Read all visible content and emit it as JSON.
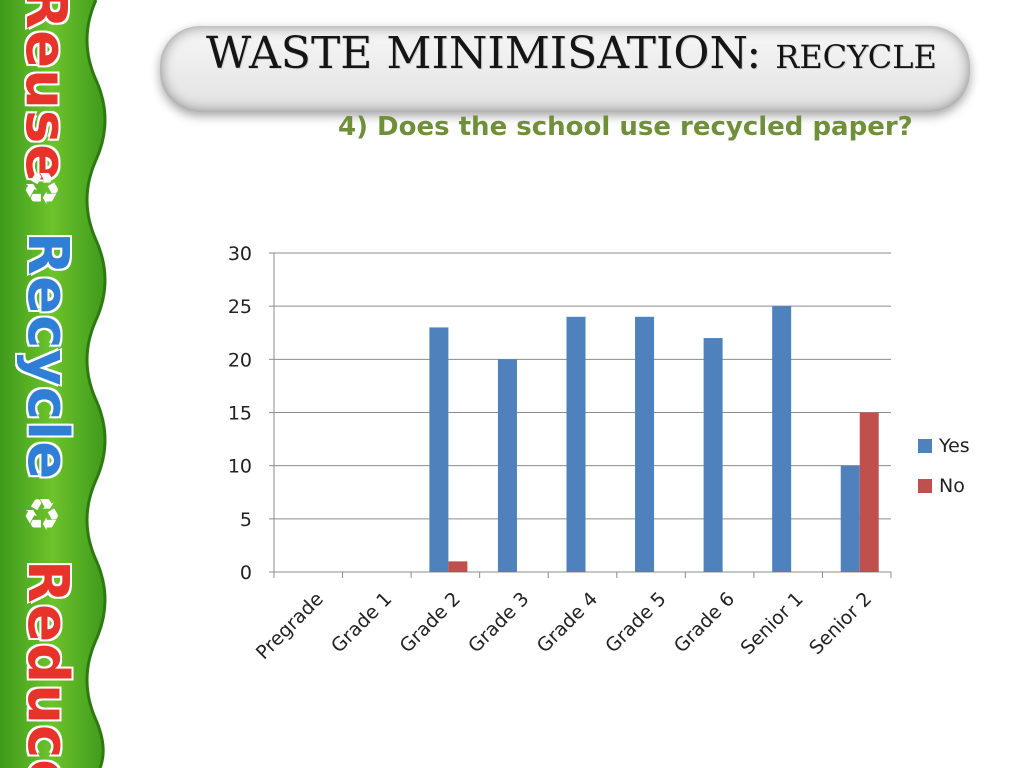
{
  "slide": {
    "title_main": "WASTE MINIMISATION: ",
    "title_small": "RECYCLE",
    "subtitle": "4) Does the school use recycled paper?"
  },
  "banner": {
    "words": [
      "Reuse",
      "Recycle",
      "Reduce"
    ]
  },
  "chart_data": {
    "type": "bar",
    "categories": [
      "Pregrade",
      "Grade 1",
      "Grade 2",
      "Grade 3",
      "Grade 4",
      "Grade 5",
      "Grade 6",
      "Senior 1",
      "Senior 2"
    ],
    "series": [
      {
        "name": "Yes",
        "color": "#4f81bd",
        "values": [
          0,
          0,
          23,
          20,
          24,
          24,
          22,
          25,
          10
        ]
      },
      {
        "name": "No",
        "color": "#c0504d",
        "values": [
          0,
          0,
          1,
          0,
          0,
          0,
          0,
          0,
          15
        ]
      }
    ],
    "ylim": [
      0,
      30
    ],
    "yticks": [
      0,
      5,
      10,
      15,
      20,
      25,
      30
    ],
    "grid": true,
    "legend": "right"
  }
}
